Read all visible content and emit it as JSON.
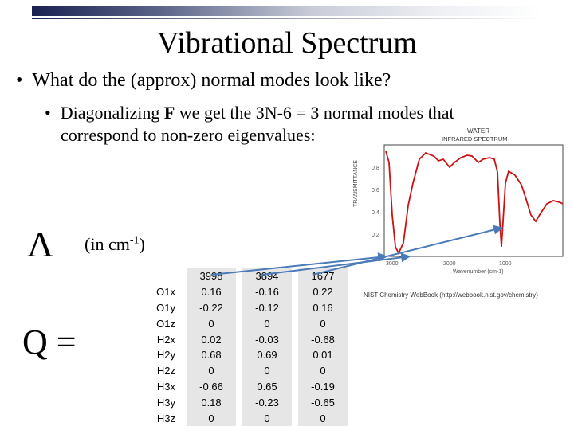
{
  "slide": {
    "title": "Vibrational Spectrum",
    "bullet1": "What do the (approx) normal modes look like?",
    "bullet2_prefix": "Diagonalizing ",
    "bullet2_bold": "F",
    "bullet2_line1_rest": " we get the 3N-6 = 3 normal modes that",
    "bullet2_line2": "correspond to non-zero eigenvalues:",
    "lambda_symbol": "Λ",
    "unit_prefix": "(in cm",
    "unit_sup": "-1",
    "unit_suffix": ")",
    "q_label": "Q ="
  },
  "spectrum": {
    "title_line1": "WATER",
    "title_line2": "INFRARED SPECTRUM",
    "ylabel": "TRANSMITTANCE",
    "yticks": [
      "0.8",
      "0.6",
      "0.4",
      "0.2"
    ],
    "xticks": [
      "3000",
      "2000",
      "1000"
    ],
    "xlabel": "Wavenumber (cm-1)",
    "credit": "NIST Chemistry WebBook (http://webbook.nist.gov/chemistry)",
    "line_color": "#cc1111"
  },
  "table": {
    "eigenvalues": [
      "3998",
      "3894",
      "1677"
    ],
    "rows": [
      {
        "label": "O1x",
        "v": [
          "0.16",
          "-0.16",
          "0.22"
        ]
      },
      {
        "label": "O1y",
        "v": [
          "-0.22",
          "-0.12",
          "0.16"
        ]
      },
      {
        "label": "O1z",
        "v": [
          "0",
          "0",
          "0"
        ]
      },
      {
        "label": "H2x",
        "v": [
          "0.02",
          "-0.03",
          "-0.68"
        ]
      },
      {
        "label": "H2y",
        "v": [
          "0.68",
          "0.69",
          "0.01"
        ]
      },
      {
        "label": "H2z",
        "v": [
          "0",
          "0",
          "0"
        ]
      },
      {
        "label": "H3x",
        "v": [
          "-0.66",
          "0.65",
          "-0.19"
        ]
      },
      {
        "label": "H3y",
        "v": [
          "0.18",
          "-0.23",
          "-0.65"
        ]
      },
      {
        "label": "H3z",
        "v": [
          "0",
          "0",
          "0"
        ]
      }
    ]
  },
  "arrow_color": "#4a7ab8"
}
